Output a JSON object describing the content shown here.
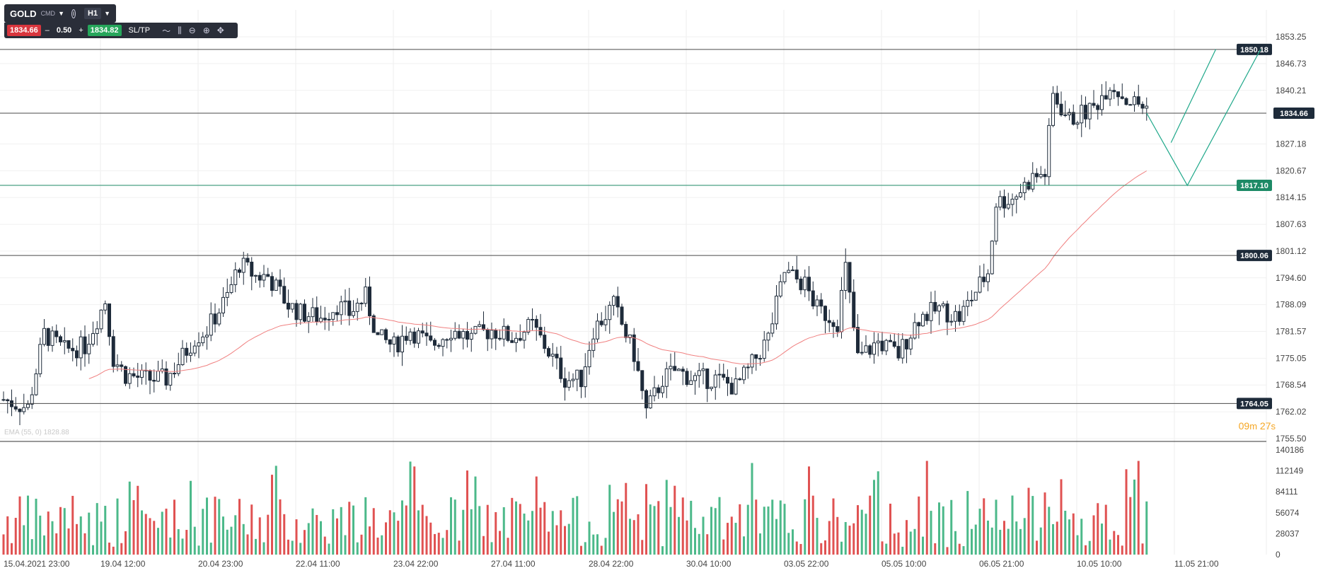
{
  "toolbar": {
    "symbol": "GOLD",
    "market": "CMD",
    "timeframe": "H1",
    "bid": "1834.66",
    "lot": "0.50",
    "ask": "1834.82",
    "sltp_label": "SL/TP",
    "minus": "–",
    "plus": "+"
  },
  "countdown": {
    "minutes": "09",
    "seconds": "27",
    "min_unit": "m",
    "sec_unit": "s"
  },
  "ema_legend": "EMA (55, 0) 1828.88",
  "colors": {
    "up": "#2ea37a",
    "down": "#1e2b3a",
    "vol_up": "#4cb98a",
    "vol_down": "#e05252",
    "ema": "#f08080",
    "support": "#1d8a66",
    "line": "#4a4a4a"
  },
  "chart_data": {
    "type": "candlestick",
    "symbol": "GOLD",
    "timeframe": "H1",
    "y_ticks": [
      1853.25,
      1846.73,
      1840.21,
      1827.18,
      1820.67,
      1814.15,
      1807.63,
      1801.12,
      1794.6,
      1788.09,
      1781.57,
      1775.05,
      1768.54,
      1762.02,
      1755.5
    ],
    "y_tick_labels": [
      "1853.25",
      "1846.73",
      "1840.21",
      "1827.18",
      "1820.67",
      "1814.15",
      "1807.63",
      "1801.12",
      "1794.60",
      "1788.09",
      "1781.57",
      "1775.05",
      "1768.54",
      "1762.02",
      "1755.50"
    ],
    "ylim": [
      1755.0,
      1856.0
    ],
    "x_tick_labels": [
      "15.04.2021 23:00",
      "19.04 12:00",
      "20.04 23:00",
      "22.04 11:00",
      "23.04 22:00",
      "27.04 11:00",
      "28.04 22:00",
      "30.04 10:00",
      "03.05 22:00",
      "05.05 10:00",
      "06.05 21:00",
      "10.05 10:00",
      "11.05 21:00"
    ],
    "horizontal_levels": [
      {
        "value": 1850.18,
        "label": "1850.18",
        "kind": "resistance"
      },
      {
        "value": 1834.66,
        "label": "1834.66",
        "kind": "current"
      },
      {
        "value": 1817.1,
        "label": "1817.10",
        "kind": "support"
      },
      {
        "value": 1800.06,
        "label": "1800.06",
        "kind": "level"
      },
      {
        "value": 1764.05,
        "label": "1764.05",
        "kind": "level"
      }
    ],
    "current_price": 1834.66,
    "close_path": [
      [
        0,
        1765
      ],
      [
        6,
        1763
      ],
      [
        10,
        1781
      ],
      [
        15,
        1777
      ],
      [
        20,
        1778
      ],
      [
        25,
        1789
      ],
      [
        27,
        1775
      ],
      [
        30,
        1771
      ],
      [
        35,
        1770
      ],
      [
        40,
        1770
      ],
      [
        43,
        1774
      ],
      [
        47,
        1780
      ],
      [
        50,
        1782
      ],
      [
        55,
        1790
      ],
      [
        58,
        1798
      ],
      [
        62,
        1795
      ],
      [
        65,
        1795
      ],
      [
        70,
        1788
      ],
      [
        73,
        1786
      ],
      [
        78,
        1785
      ],
      [
        82,
        1788
      ],
      [
        85,
        1786
      ],
      [
        89,
        1790
      ],
      [
        92,
        1780
      ],
      [
        96,
        1778
      ],
      [
        100,
        1782
      ],
      [
        105,
        1778
      ],
      [
        110,
        1782
      ],
      [
        115,
        1780
      ],
      [
        120,
        1782
      ],
      [
        125,
        1780
      ],
      [
        130,
        1783
      ],
      [
        135,
        1775
      ],
      [
        138,
        1770
      ],
      [
        142,
        1770
      ],
      [
        145,
        1782
      ],
      [
        150,
        1788
      ],
      [
        155,
        1776
      ],
      [
        158,
        1762
      ],
      [
        162,
        1770
      ],
      [
        165,
        1772
      ],
      [
        170,
        1770
      ],
      [
        175,
        1770
      ],
      [
        180,
        1768
      ],
      [
        183,
        1772
      ],
      [
        188,
        1780
      ],
      [
        192,
        1796
      ],
      [
        197,
        1793
      ],
      [
        200,
        1787
      ],
      [
        205,
        1784
      ],
      [
        207,
        1797
      ],
      [
        210,
        1775
      ],
      [
        215,
        1779
      ],
      [
        220,
        1776
      ],
      [
        225,
        1785
      ],
      [
        230,
        1787
      ],
      [
        235,
        1785
      ],
      [
        240,
        1793
      ],
      [
        242,
        1796
      ],
      [
        244,
        1813
      ],
      [
        248,
        1814
      ],
      [
        253,
        1819
      ],
      [
        256,
        1820
      ],
      [
        258,
        1839
      ],
      [
        262,
        1833
      ],
      [
        268,
        1836
      ],
      [
        272,
        1842
      ],
      [
        276,
        1838
      ],
      [
        281,
        1836
      ]
    ],
    "candle_count": 282,
    "ema": {
      "name": "EMA (55, 0)",
      "value": 1828.88
    },
    "volume": {
      "y_ticks": [
        140186,
        112149,
        84111,
        56074,
        28037,
        0
      ],
      "y_tick_labels": [
        "140186",
        "112149",
        "84111",
        "56074",
        "28037",
        "0"
      ],
      "ylim": [
        0,
        140186
      ]
    },
    "projection_path": [
      [
        1834.66,
        0
      ],
      [
        1817.1,
        10
      ],
      [
        1850.18,
        28
      ]
    ],
    "grid": true
  }
}
